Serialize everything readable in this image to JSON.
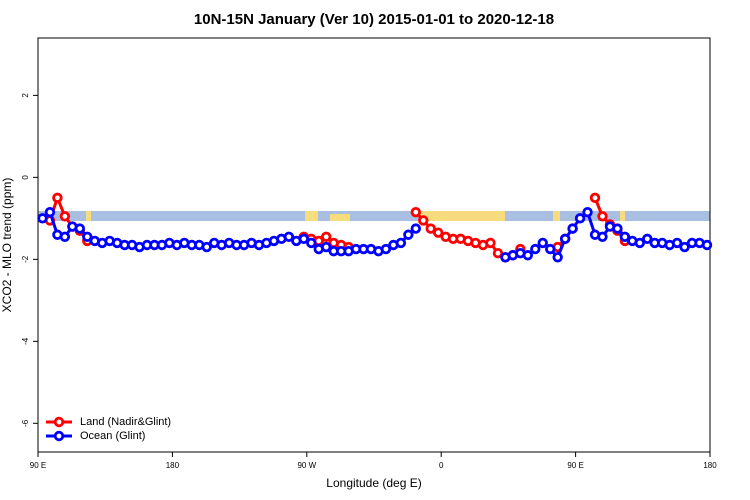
{
  "chart_data": {
    "type": "line",
    "title": "10N-15N January (Ver 10)   2015-01-01 to 2020-12-18",
    "x_label": "Longitude (deg E)",
    "y_label": "XCO2 - MLO trend (ppm)",
    "x": [
      93,
      98,
      103,
      108,
      113,
      118,
      123,
      128,
      133,
      138,
      143,
      148,
      153,
      158,
      163,
      168,
      173,
      178,
      183,
      188,
      193,
      198,
      203,
      208,
      213,
      218,
      223,
      228,
      233,
      238,
      243,
      248,
      253,
      258,
      263,
      268,
      273,
      278,
      283,
      288,
      293,
      298,
      303,
      308,
      313,
      318,
      323,
      328,
      333,
      338,
      343,
      348,
      353,
      358,
      363,
      368,
      373,
      378,
      383,
      388,
      393,
      398,
      403,
      408,
      413,
      418,
      423,
      428,
      433,
      438,
      443,
      448,
      453,
      458,
      463,
      468,
      473,
      478,
      483,
      488,
      493,
      498,
      503,
      508,
      513,
      518,
      523,
      528,
      533,
      538
    ],
    "series": [
      {
        "name": "Land (Nadir&Glint)",
        "color": "#ff0000",
        "values": [
          null,
          -1.05,
          -0.5,
          -0.95,
          -1.2,
          -1.3,
          -1.55,
          null,
          null,
          null,
          null,
          null,
          null,
          null,
          null,
          null,
          null,
          null,
          null,
          null,
          null,
          null,
          null,
          null,
          null,
          null,
          null,
          null,
          null,
          null,
          null,
          null,
          null,
          null,
          null,
          -1.45,
          -1.5,
          -1.55,
          -1.45,
          -1.6,
          -1.65,
          -1.7,
          null,
          null,
          null,
          null,
          null,
          null,
          null,
          null,
          -0.85,
          -1.05,
          -1.25,
          -1.35,
          -1.45,
          -1.5,
          -1.5,
          -1.55,
          -1.6,
          -1.65,
          -1.6,
          -1.85,
          -1.95,
          -1.9,
          -1.75,
          null,
          null,
          null,
          null,
          -1.7,
          -1.5,
          -1.25,
          null,
          null,
          -0.5,
          -0.95,
          -1.15,
          -1.3,
          -1.55,
          null,
          null,
          null,
          null,
          null,
          null,
          null,
          null,
          null,
          null,
          null
        ]
      },
      {
        "name": "Ocean (Glint)",
        "color": "#0000ff",
        "values": [
          -1.0,
          -0.85,
          -1.4,
          -1.45,
          -1.2,
          -1.25,
          -1.45,
          -1.55,
          -1.6,
          -1.55,
          -1.6,
          -1.65,
          -1.65,
          -1.7,
          -1.65,
          -1.65,
          -1.65,
          -1.6,
          -1.65,
          -1.6,
          -1.65,
          -1.65,
          -1.7,
          -1.6,
          -1.65,
          -1.6,
          -1.65,
          -1.65,
          -1.6,
          -1.65,
          -1.6,
          -1.55,
          -1.5,
          -1.45,
          -1.55,
          -1.5,
          -1.6,
          -1.75,
          -1.7,
          -1.8,
          -1.8,
          -1.8,
          -1.75,
          -1.75,
          -1.75,
          -1.8,
          -1.75,
          -1.65,
          -1.6,
          -1.4,
          -1.25,
          null,
          null,
          null,
          null,
          null,
          null,
          null,
          null,
          null,
          null,
          null,
          -1.95,
          -1.9,
          -1.85,
          -1.9,
          -1.75,
          -1.6,
          -1.75,
          -1.95,
          -1.5,
          -1.25,
          -1.0,
          -0.85,
          -1.4,
          -1.45,
          -1.2,
          -1.25,
          -1.45,
          -1.55,
          -1.6,
          -1.5,
          -1.6,
          -1.6,
          -1.65,
          -1.6,
          -1.7,
          -1.6,
          -1.6,
          -1.65
        ]
      }
    ],
    "xlim": [
      90,
      540
    ],
    "xticks": [
      {
        "value": 90,
        "label": "90 E"
      },
      180,
      {
        "value": 270,
        "label": "90 W"
      },
      {
        "value": 360,
        "label": "0"
      },
      {
        "value": 450,
        "label": "90 E"
      },
      {
        "value": 540,
        "label": "180"
      }
    ],
    "ylim": [
      -6.7,
      3.4
    ],
    "yticks": [
      2,
      0,
      -2,
      -4,
      -6
    ],
    "legend": "bottom-left"
  }
}
